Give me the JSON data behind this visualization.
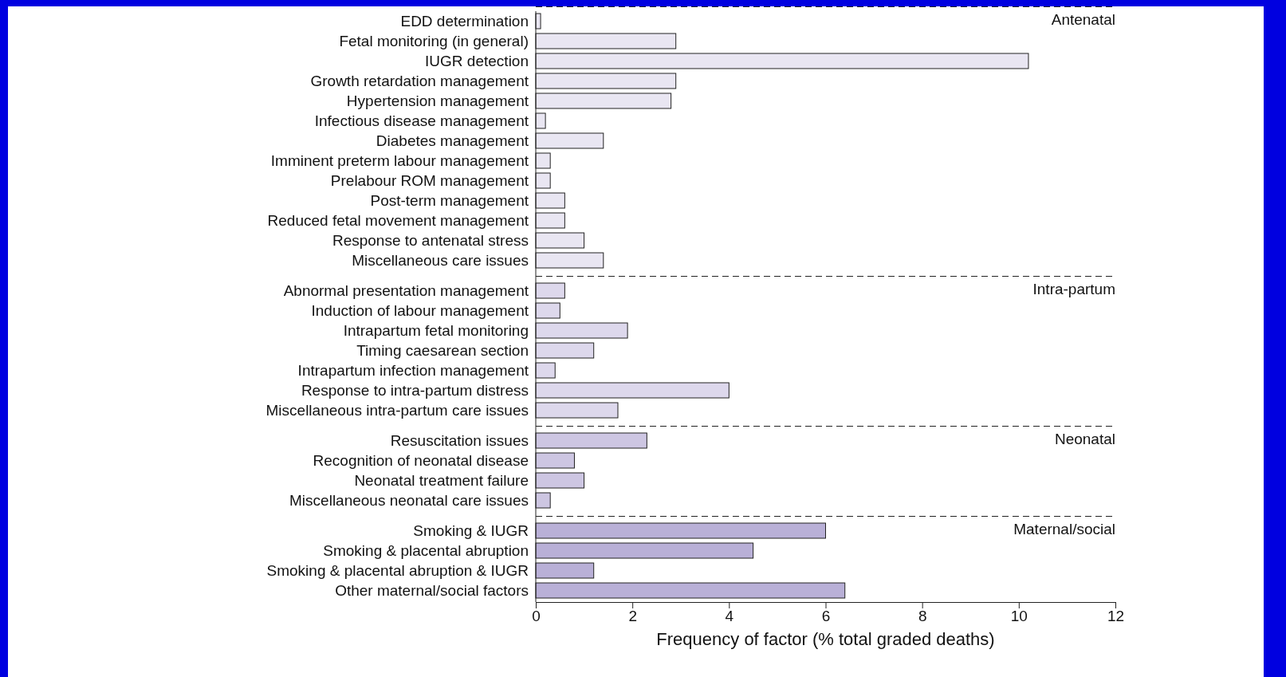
{
  "chart_data": {
    "type": "bar",
    "orientation": "horizontal",
    "xlabel": "Frequency of factor (% total graded deaths)",
    "categories": [
      "EDD determination",
      "Fetal monitoring (in general)",
      "IUGR detection",
      "Growth retardation management",
      "Hypertension management",
      "Infectious disease management",
      "Diabetes management",
      "Imminent preterm labour management",
      "Prelabour ROM management",
      "Post-term management",
      "Reduced fetal movement management",
      "Response to antenatal stress",
      "Miscellaneous care issues",
      "Abnormal presentation management",
      "Induction of labour management",
      "Intrapartum fetal monitoring",
      "Timing caesarean section",
      "Intrapartum infection management",
      "Response to intra-partum distress",
      "Miscellaneous intra-partum care issues",
      "Resuscitation issues",
      "Recognition of neonatal disease",
      "Neonatal treatment failure",
      "Miscellaneous neonatal care issues",
      "Smoking & IUGR",
      "Smoking & placental abruption",
      "Smoking & placental abruption & IUGR",
      "Other maternal/social factors"
    ],
    "series": [
      {
        "name": "Antenatal",
        "color": "#e9e6f2",
        "values": [
          0.1,
          2.9,
          10.2,
          2.9,
          2.8,
          0.2,
          1.4,
          0.3,
          0.3,
          0.6,
          0.6,
          1.0,
          1.4,
          null,
          null,
          null,
          null,
          null,
          null,
          null,
          null,
          null,
          null,
          null,
          null,
          null,
          null,
          null
        ]
      },
      {
        "name": "Intra-partum",
        "color": "#ddd8ec",
        "values": [
          null,
          null,
          null,
          null,
          null,
          null,
          null,
          null,
          null,
          null,
          null,
          null,
          null,
          0.6,
          0.5,
          1.9,
          1.2,
          0.4,
          4.0,
          1.7,
          null,
          null,
          null,
          null,
          null,
          null,
          null,
          null
        ]
      },
      {
        "name": "Neonatal",
        "color": "#cdc6e2",
        "values": [
          null,
          null,
          null,
          null,
          null,
          null,
          null,
          null,
          null,
          null,
          null,
          null,
          null,
          null,
          null,
          null,
          null,
          null,
          null,
          null,
          2.3,
          0.8,
          1.0,
          0.3,
          null,
          null,
          null,
          null
        ]
      },
      {
        "name": "Maternal/social",
        "color": "#b9b0d7",
        "values": [
          null,
          null,
          null,
          null,
          null,
          null,
          null,
          null,
          null,
          null,
          null,
          null,
          null,
          null,
          null,
          null,
          null,
          null,
          null,
          null,
          null,
          null,
          null,
          null,
          6.0,
          4.5,
          1.2,
          6.4
        ]
      }
    ],
    "xlim": [
      0,
      12
    ],
    "xticks": [
      0,
      2,
      4,
      6,
      8,
      10,
      12
    ]
  }
}
